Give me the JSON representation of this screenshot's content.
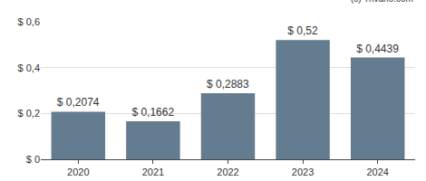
{
  "chart_data": {
    "type": "bar",
    "categories": [
      "2020",
      "2021",
      "2022",
      "2023",
      "2024"
    ],
    "values": [
      0.2074,
      0.1662,
      0.2883,
      0.52,
      0.4439
    ],
    "value_labels": [
      "$ 0,2074",
      "$ 0,1662",
      "$ 0,2883",
      "$ 0,52",
      "$ 0,4439"
    ],
    "data_labels": true,
    "color": "#647c8f",
    "ylim": [
      0,
      0.6
    ],
    "yticks": [
      {
        "value": 0,
        "label": "$ 0"
      },
      {
        "value": 0.2,
        "label": "$ 0,2"
      },
      {
        "value": 0.4,
        "label": "$ 0,4"
      },
      {
        "value": 0.6,
        "label": "$ 0,6"
      }
    ],
    "grid": true,
    "annotations": [
      "(c) Trivano.com"
    ]
  }
}
